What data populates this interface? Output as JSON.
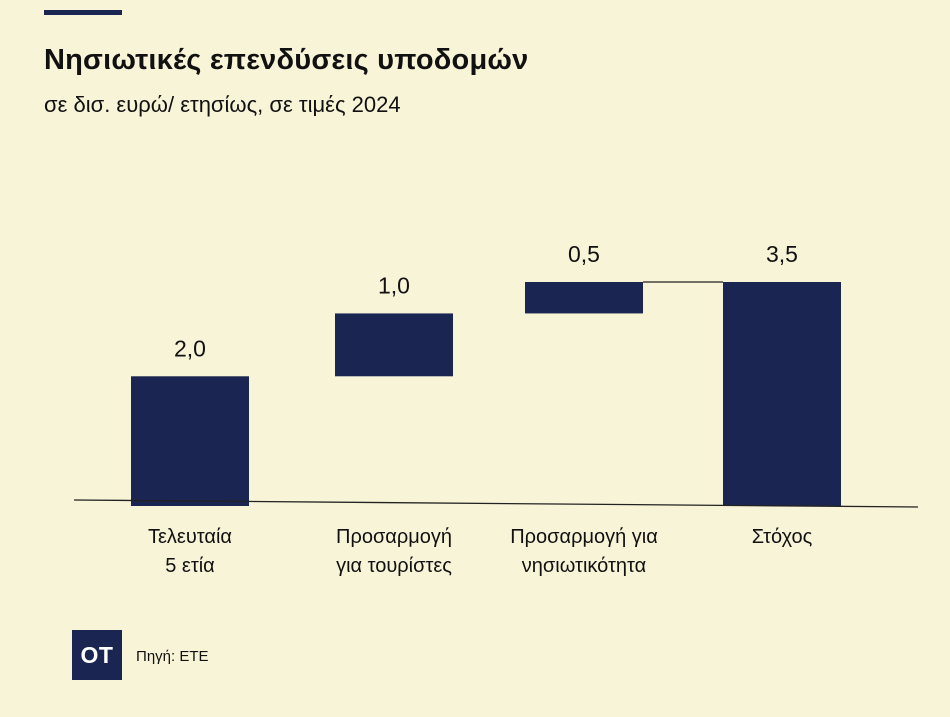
{
  "header": {
    "title": "Νησιωτικές επενδύσεις υποδομών",
    "subtitle": "σε δισ. ευρώ/ ετησίως, σε τιμές 2024"
  },
  "footer": {
    "logo_text": "OT",
    "source": "Πηγή: ΕΤΕ"
  },
  "colors": {
    "background": "#f8f4d8",
    "bar": "#1b2552",
    "text": "#111111",
    "axis": "#222222"
  },
  "chart_data": {
    "type": "bar",
    "subtype": "waterfall",
    "title": "Νησιωτικές επενδύσεις υποδομών",
    "subtitle": "σε δισ. ευρώ/ ετησίως, σε τιμές 2024",
    "categories": [
      [
        "Τελευταία",
        "5 ετία"
      ],
      [
        "Προσαρμογή",
        "για τουρίστες"
      ],
      [
        "Προσαρμογή για",
        "νησιωτικότητα"
      ],
      [
        "Στόχος"
      ]
    ],
    "values": [
      2.0,
      1.0,
      0.5,
      3.5
    ],
    "bases": [
      0,
      2.0,
      3.0,
      0
    ],
    "value_labels": [
      "2,0",
      "1,0",
      "0,5",
      "3,5"
    ],
    "ylim": [
      0,
      3.5
    ],
    "xlabel": "",
    "ylabel": "",
    "grid": false,
    "legend": "none"
  }
}
